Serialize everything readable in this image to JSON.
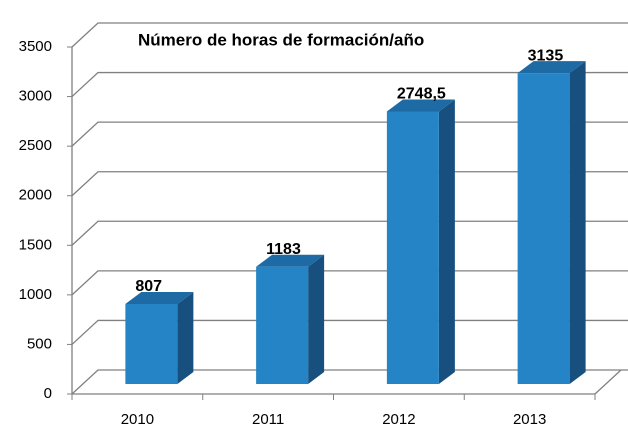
{
  "chart_data": {
    "type": "bar3d",
    "title": "Número de horas de formación/año",
    "categories": [
      "2010",
      "2011",
      "2012",
      "2013"
    ],
    "values": [
      807,
      1183,
      2748.5,
      3135
    ],
    "value_labels": [
      "807",
      "1183",
      "2748,5",
      "3135"
    ],
    "color": "#2484c6",
    "ylim": [
      0,
      3500
    ],
    "yticks": [
      0,
      500,
      1000,
      1500,
      2000,
      2500,
      3000,
      3500
    ],
    "grid": true
  }
}
